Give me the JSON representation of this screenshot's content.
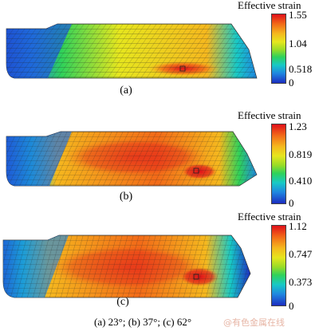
{
  "panels": [
    {
      "label": "(a)",
      "legend": {
        "title": "Effective strain",
        "ticks": [
          "1.55",
          "1.04",
          "0.518",
          "0"
        ]
      }
    },
    {
      "label": "(b)",
      "legend": {
        "title": "Effective strain",
        "ticks": [
          "1.23",
          "0.819",
          "0.410",
          "0"
        ]
      }
    },
    {
      "label": "(c)",
      "legend": {
        "title": "Effective strain",
        "ticks": [
          "1.12",
          "0.747",
          "0.373",
          "0"
        ]
      }
    }
  ],
  "caption": "(a)  23°; (b) 37°; (c) 62°",
  "watermark": "@有色金属在线",
  "colormap": [
    "#1c2dc0",
    "#1f86e0",
    "#18c9c6",
    "#2fd25a",
    "#96dc28",
    "#e6e61e",
    "#f5b81e",
    "#f26a18",
    "#e0101a"
  ]
}
